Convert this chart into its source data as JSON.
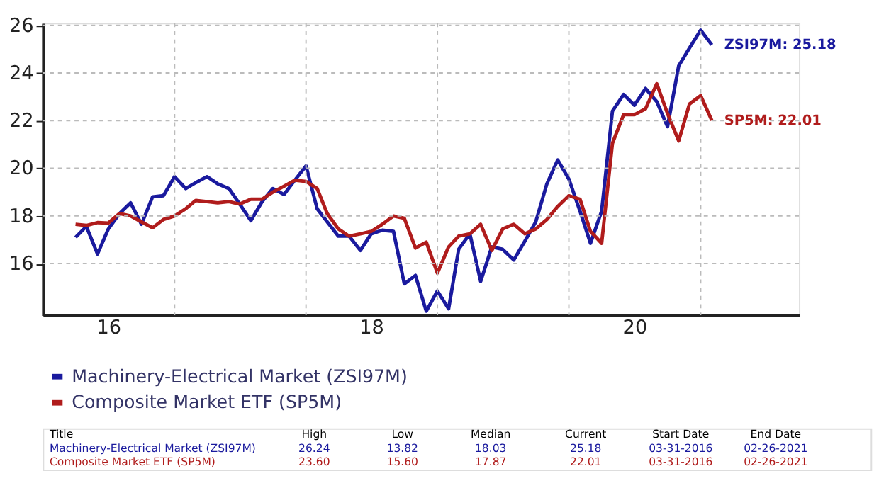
{
  "chart_data": {
    "type": "line",
    "x": [
      "2016-04",
      "2016-05",
      "2016-06",
      "2016-07",
      "2016-08",
      "2016-09",
      "2016-10",
      "2016-11",
      "2016-12",
      "2017-01",
      "2017-02",
      "2017-03",
      "2017-04",
      "2017-05",
      "2017-06",
      "2017-07",
      "2017-08",
      "2017-09",
      "2017-10",
      "2017-11",
      "2017-12",
      "2018-01",
      "2018-02",
      "2018-03",
      "2018-04",
      "2018-05",
      "2018-06",
      "2018-07",
      "2018-08",
      "2018-09",
      "2018-10",
      "2018-11",
      "2018-12",
      "2019-01",
      "2019-02",
      "2019-03",
      "2019-04",
      "2019-05",
      "2019-06",
      "2019-07",
      "2019-08",
      "2019-09",
      "2019-10",
      "2019-11",
      "2019-12",
      "2020-01",
      "2020-02",
      "2020-03",
      "2020-04",
      "2020-05",
      "2020-06",
      "2020-07",
      "2020-08",
      "2020-09",
      "2020-10",
      "2020-11",
      "2020-12",
      "2021-01",
      "2021-02"
    ],
    "series": [
      {
        "name": "Machinery-Electrical Market (ZSI97M)",
        "color": "#1a1a9e",
        "values": [
          17.1,
          17.56,
          16.4,
          17.45,
          18.1,
          18.55,
          17.65,
          18.8,
          18.85,
          19.65,
          19.15,
          19.4,
          19.65,
          19.35,
          19.15,
          18.5,
          17.8,
          18.6,
          19.15,
          18.9,
          19.5,
          20.1,
          18.3,
          17.75,
          17.15,
          17.15,
          16.55,
          17.25,
          17.4,
          17.35,
          15.15,
          15.5,
          14.0,
          14.85,
          14.1,
          16.6,
          17.25,
          15.25,
          16.7,
          16.6,
          16.15,
          16.95,
          17.75,
          19.35,
          20.35,
          19.55,
          18.2,
          16.85,
          18.2,
          22.4,
          23.1,
          22.65,
          23.35,
          22.8,
          21.75,
          24.3,
          25.05,
          25.8,
          25.18
        ]
      },
      {
        "name": "Composite Market ETF (SP5M)",
        "color": "#b01c1c",
        "values": [
          17.65,
          17.6,
          17.72,
          17.7,
          18.1,
          18.0,
          17.75,
          17.5,
          17.85,
          18.0,
          18.3,
          18.65,
          18.6,
          18.55,
          18.6,
          18.5,
          18.7,
          18.7,
          19.0,
          19.25,
          19.5,
          19.45,
          19.15,
          18.1,
          17.45,
          17.15,
          17.25,
          17.35,
          17.65,
          18.0,
          17.9,
          16.65,
          16.9,
          15.6,
          16.7,
          17.15,
          17.25,
          17.65,
          16.55,
          17.45,
          17.65,
          17.25,
          17.45,
          17.85,
          18.4,
          18.85,
          18.7,
          17.35,
          16.85,
          21.05,
          22.25,
          22.25,
          22.5,
          23.55,
          22.3,
          21.15,
          22.7,
          23.05,
          22.01
        ]
      }
    ],
    "xlim": [
      "2016-01",
      "2021-10"
    ],
    "xticks": [
      {
        "value": "2016-07",
        "label": "16"
      },
      {
        "value": "2017-01",
        "label": null
      },
      {
        "value": "2018-01",
        "label": null
      },
      {
        "value": "2018-07",
        "label": "18"
      },
      {
        "value": "2019-01",
        "label": null
      },
      {
        "value": "2020-01",
        "label": null
      },
      {
        "value": "2020-07",
        "label": "20"
      },
      {
        "value": "2021-01",
        "label": null
      }
    ],
    "ylim": [
      13.83,
      26.1
    ],
    "yticks": [
      16,
      18,
      20,
      22,
      24,
      26
    ],
    "grid": true,
    "legend": "bottom left",
    "annotations": [
      {
        "text": "ZSI97M: 25.18",
        "x": "2021-02",
        "y": 25.18
      },
      {
        "text": "SP5M: 22.01",
        "x": "2021-02",
        "y": 22.01
      },
      "Title",
      "High",
      "Low",
      "Median",
      "Current",
      "Start Date",
      "End Date",
      "Machinery-Electrical Market (ZSI97M)",
      "26.24",
      "13.82",
      "18.03",
      "25.18",
      "03-31-2016",
      "02-26-2021",
      "Composite Market ETF (SP5M)",
      "23.60",
      "15.60",
      "17.87",
      "22.01",
      "03-31-2016",
      "02-26-2021"
    ]
  }
}
